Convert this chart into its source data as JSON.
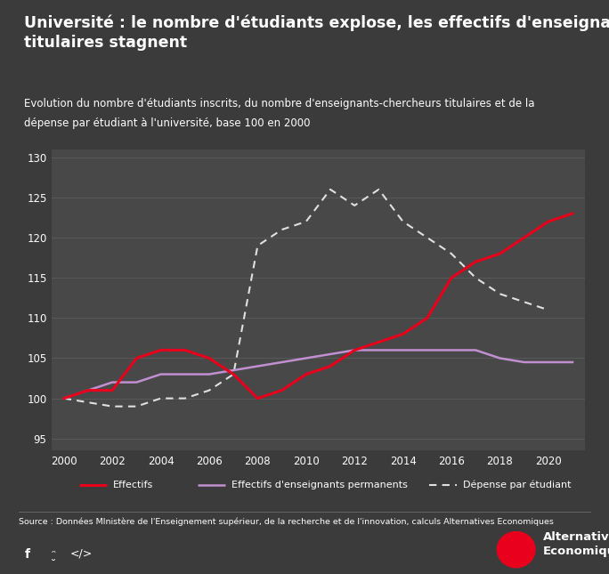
{
  "title": "Université : le nombre d'étudiants explose, les effectifs d'enseignants\ntitulaires stagnent",
  "subtitle1": "Evolution du nombre d'étudiants inscrits, du nombre d'enseignants-chercheurs titulaires et de la",
  "subtitle2": "dépense par étudiant à l'université, base 100 en 2000",
  "source": "Source : Données MInistère de l'Enseignement supérieur, de la recherche et de l'innovation, calculs Alternatives Economiques",
  "background_color": "#3b3b3b",
  "plot_bg_color": "#484848",
  "text_color": "#ffffff",
  "grid_color": "#5c5c5c",
  "ylim": [
    93.5,
    131
  ],
  "yticks": [
    95,
    100,
    105,
    110,
    115,
    120,
    125,
    130
  ],
  "xlim": [
    1999.5,
    2021.5
  ],
  "xticks": [
    2000,
    2002,
    2004,
    2006,
    2008,
    2010,
    2012,
    2014,
    2016,
    2018,
    2020
  ],
  "effectifs_x": [
    2000,
    2001,
    2002,
    2003,
    2004,
    2005,
    2006,
    2007,
    2008,
    2009,
    2010,
    2011,
    2012,
    2013,
    2014,
    2015,
    2016,
    2017,
    2018,
    2019,
    2020,
    2021
  ],
  "effectifs_y": [
    100,
    101,
    101,
    105,
    106,
    106,
    105,
    103,
    100,
    101,
    103,
    104,
    106,
    107,
    108,
    110,
    115,
    117,
    118,
    120,
    122,
    123
  ],
  "enseignants_x": [
    2000,
    2001,
    2002,
    2003,
    2004,
    2005,
    2006,
    2007,
    2008,
    2009,
    2010,
    2011,
    2012,
    2013,
    2014,
    2015,
    2016,
    2017,
    2018,
    2019,
    2020,
    2021
  ],
  "enseignants_y": [
    100,
    101,
    102,
    102,
    103,
    103,
    103,
    103.5,
    104,
    104.5,
    105,
    105.5,
    106,
    106,
    106,
    106,
    106,
    106,
    105,
    104.5,
    104.5,
    104.5
  ],
  "depense_x": [
    2000,
    2001,
    2002,
    2003,
    2004,
    2005,
    2006,
    2007,
    2008,
    2009,
    2010,
    2011,
    2012,
    2013,
    2014,
    2015,
    2016,
    2017,
    2018,
    2019,
    2020
  ],
  "depense_y": [
    100,
    99.5,
    99,
    99,
    100,
    100,
    101,
    103,
    119,
    121,
    122,
    126,
    124,
    126,
    122,
    120,
    118,
    115,
    113,
    112,
    111
  ],
  "effectifs_color": "#e8001c",
  "enseignants_color": "#c090d0",
  "depense_color": "#e0e0e0",
  "legend_effectifs": "Effectifs",
  "legend_enseignants": "Effectifs d'enseignants permanents",
  "legend_depense": "Dépense par étudiant"
}
